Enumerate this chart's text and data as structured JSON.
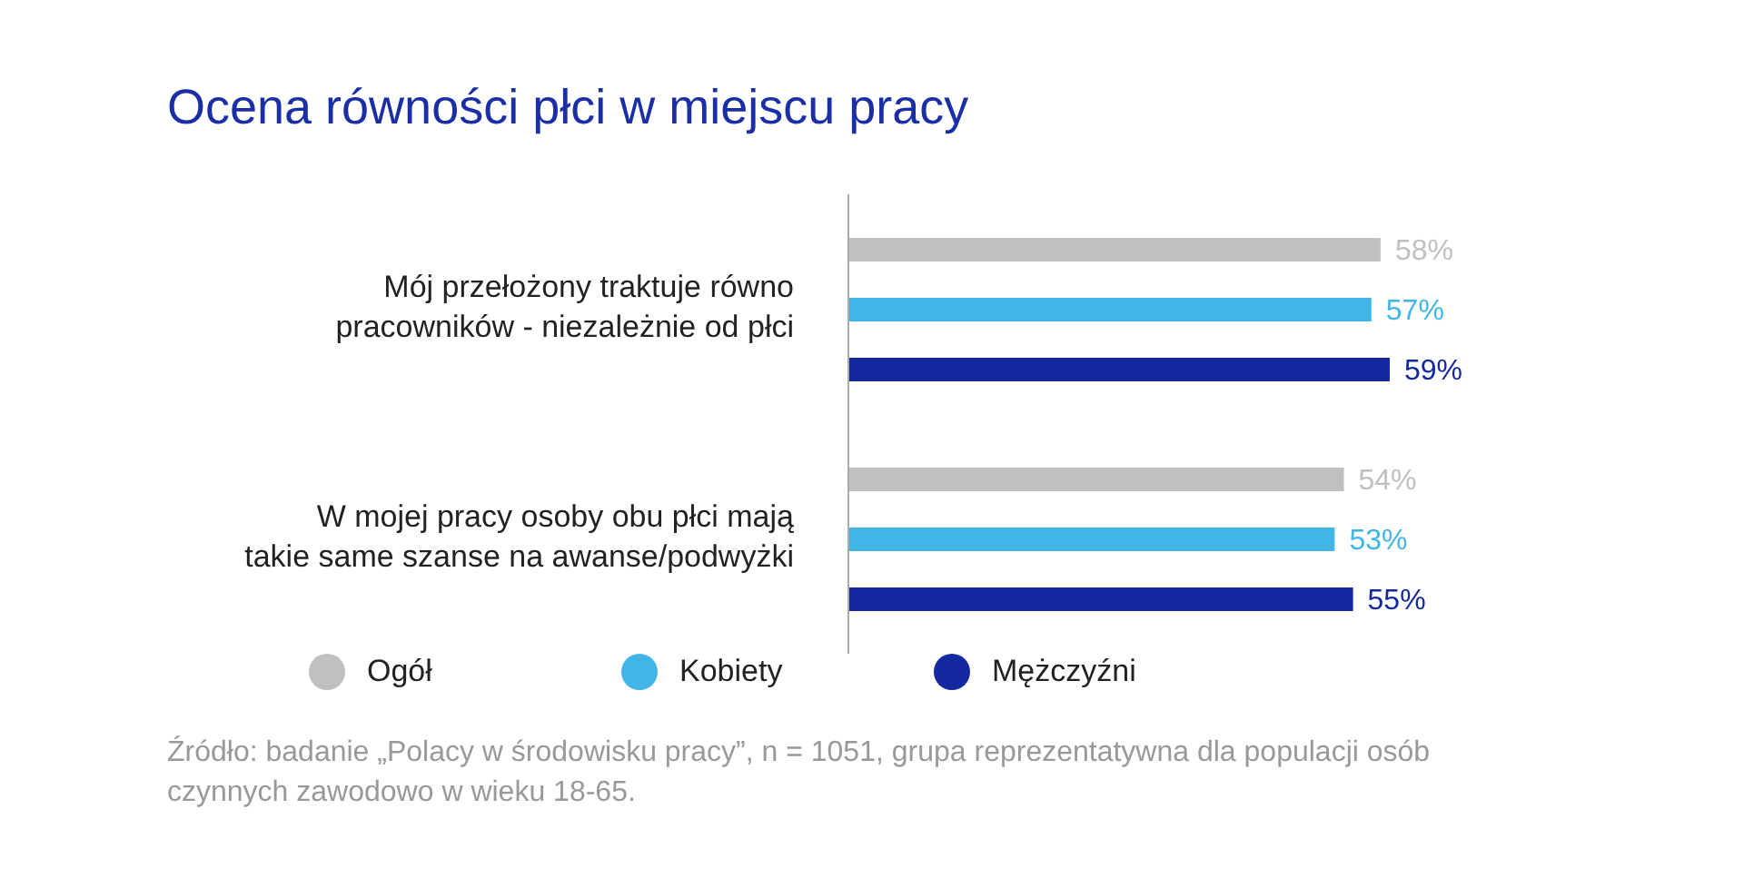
{
  "chart_data": {
    "type": "bar",
    "orientation": "horizontal",
    "title": "Ocena równości płci w miejscu pracy",
    "categories": [
      "Mój przełożony traktuje równo pracowników - niezależnie od płci",
      "W mojej pracy osoby obu płci mają takie same szanse na awanse/podwyżki"
    ],
    "series": [
      {
        "name": "Ogół",
        "color": "#c0c0c0",
        "values": [
          58,
          54
        ],
        "value_labels": [
          "58%",
          "54%"
        ]
      },
      {
        "name": "Kobiety",
        "color": "#41b6e6",
        "values": [
          57,
          53
        ],
        "value_labels": [
          "57%",
          "53%"
        ]
      },
      {
        "name": "Mężczyźni",
        "color": "#1428a0",
        "values": [
          59,
          55
        ],
        "value_labels": [
          "59%",
          "55%"
        ]
      }
    ],
    "tick_labels": "y",
    "grid": false,
    "legend": "bottom left",
    "annotations": [
      "Źródło: badanie „Polacy w środowisku pracy”, n = 1051, grupa reprezentatywna dla populacji osób czynnych zawodowo w wieku 18-65."
    ]
  }
}
